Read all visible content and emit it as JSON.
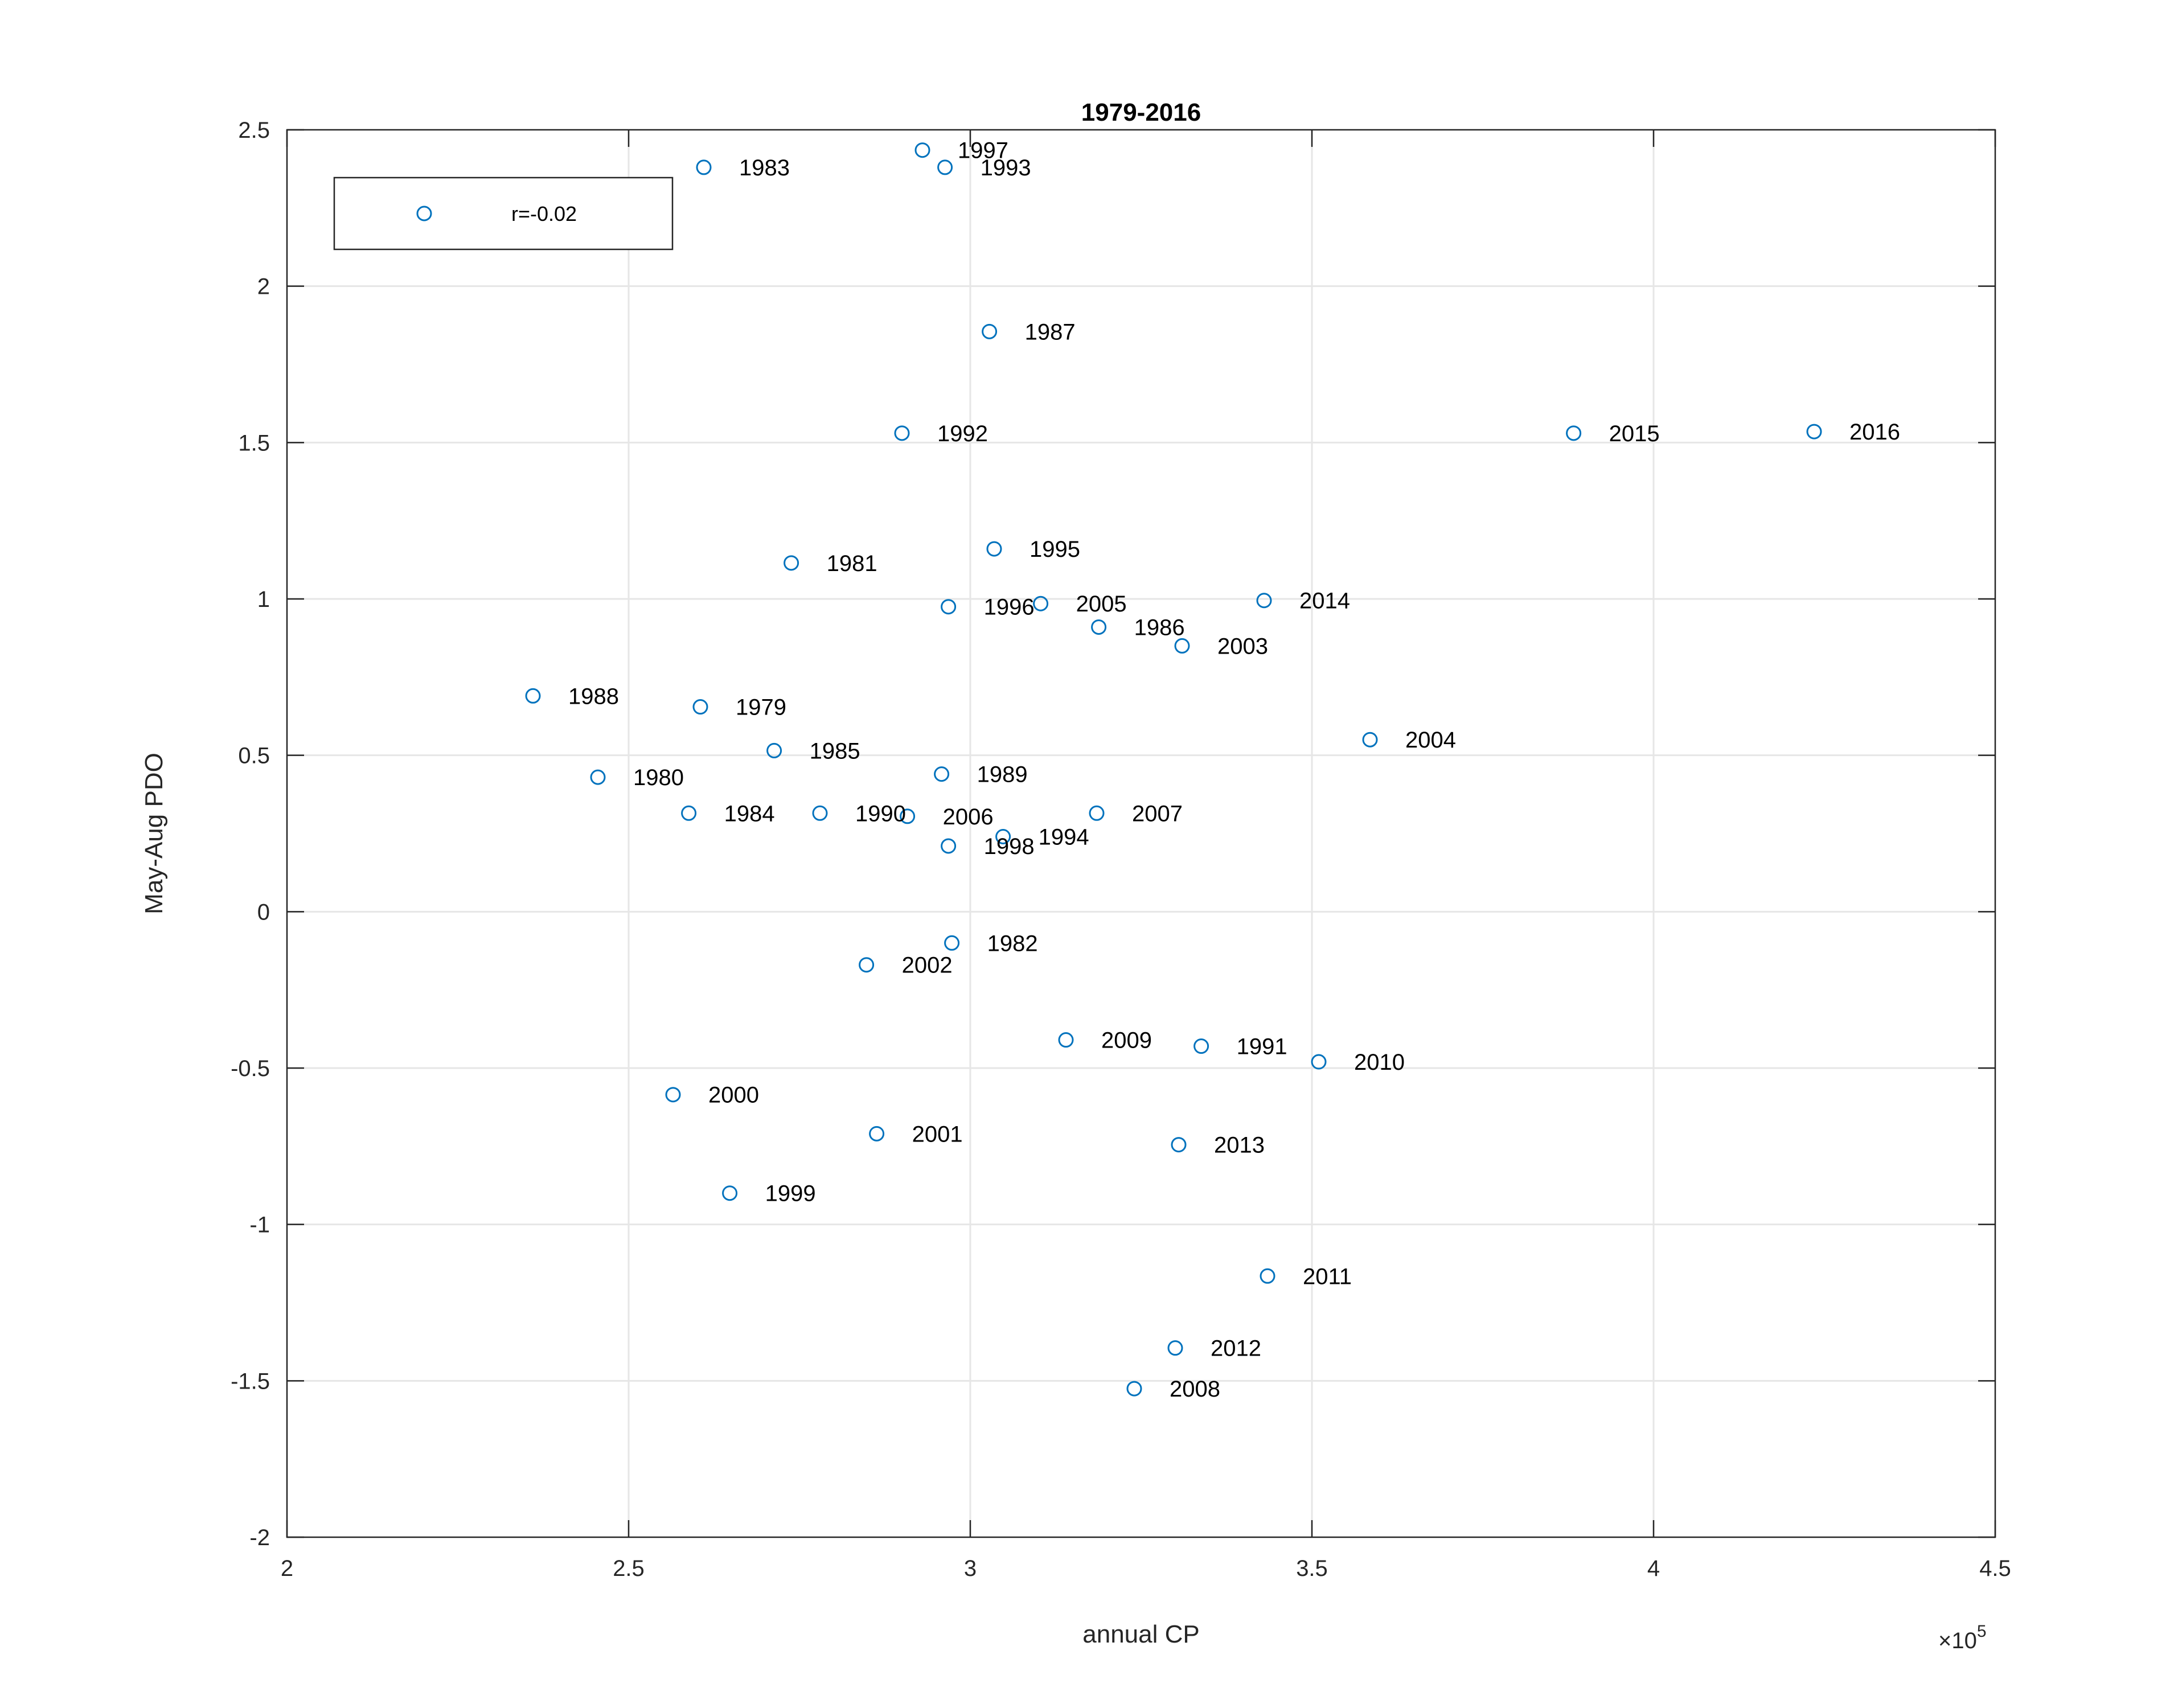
{
  "chart_data": {
    "type": "scatter",
    "title": "1979-2016",
    "xlabel": "annual CP",
    "ylabel": "May-Aug PDO",
    "x_exponent_label": "×10",
    "x_exponent_power": "5",
    "x_scale": 100000,
    "xlim": [
      2,
      4.5
    ],
    "ylim": [
      -2,
      2.5
    ],
    "xticks": [
      2,
      2.5,
      3,
      3.5,
      4,
      4.5
    ],
    "xtick_labels": [
      "2",
      "2.5",
      "3",
      "3.5",
      "4",
      "4.5"
    ],
    "yticks": [
      -2,
      -1.5,
      -1,
      -0.5,
      0,
      0.5,
      1,
      1.5,
      2,
      2.5
    ],
    "ytick_labels": [
      "-2",
      "-1.5",
      "-1",
      "-0.5",
      "0",
      "0.5",
      "1",
      "1.5",
      "2",
      "2.5"
    ],
    "grid": true,
    "legend": {
      "position": "top-left",
      "entries": [
        "r=-0.02"
      ]
    },
    "marker": "circle-open",
    "colors": {
      "marker": "#0072BD",
      "axis": "#262626",
      "grid": "#e6e6e6"
    },
    "series": [
      {
        "name": "r=-0.02",
        "points": [
          {
            "label": "1979",
            "x": 2.605,
            "y": 0.655
          },
          {
            "label": "1980",
            "x": 2.455,
            "y": 0.43
          },
          {
            "label": "1981",
            "x": 2.738,
            "y": 1.115
          },
          {
            "label": "1982",
            "x": 2.973,
            "y": -0.1
          },
          {
            "label": "1983",
            "x": 2.61,
            "y": 2.38
          },
          {
            "label": "1984",
            "x": 2.588,
            "y": 0.315
          },
          {
            "label": "1985",
            "x": 2.713,
            "y": 0.515
          },
          {
            "label": "1986",
            "x": 3.188,
            "y": 0.91
          },
          {
            "label": "1987",
            "x": 3.028,
            "y": 1.855
          },
          {
            "label": "1988",
            "x": 2.36,
            "y": 0.69
          },
          {
            "label": "1989",
            "x": 2.958,
            "y": 0.44
          },
          {
            "label": "1990",
            "x": 2.78,
            "y": 0.315
          },
          {
            "label": "1991",
            "x": 3.338,
            "y": -0.43
          },
          {
            "label": "1992",
            "x": 2.9,
            "y": 1.53
          },
          {
            "label": "1993",
            "x": 2.963,
            "y": 2.38
          },
          {
            "label": "1994",
            "x": 3.048,
            "y": 0.24
          },
          {
            "label": "1995",
            "x": 3.035,
            "y": 1.16
          },
          {
            "label": "1996",
            "x": 2.968,
            "y": 0.975
          },
          {
            "label": "1997",
            "x": 2.93,
            "y": 2.435
          },
          {
            "label": "1998",
            "x": 2.968,
            "y": 0.21
          },
          {
            "label": "1999",
            "x": 2.648,
            "y": -0.9
          },
          {
            "label": "2000",
            "x": 2.565,
            "y": -0.585
          },
          {
            "label": "2001",
            "x": 2.863,
            "y": -0.71
          },
          {
            "label": "2002",
            "x": 2.848,
            "y": -0.17
          },
          {
            "label": "2003",
            "x": 3.31,
            "y": 0.85
          },
          {
            "label": "2004",
            "x": 3.585,
            "y": 0.55
          },
          {
            "label": "2005",
            "x": 3.103,
            "y": 0.985
          },
          {
            "label": "2006",
            "x": 2.908,
            "y": 0.305
          },
          {
            "label": "2007",
            "x": 3.185,
            "y": 0.315
          },
          {
            "label": "2008",
            "x": 3.24,
            "y": -1.525
          },
          {
            "label": "2009",
            "x": 3.14,
            "y": -0.41
          },
          {
            "label": "2010",
            "x": 3.51,
            "y": -0.48
          },
          {
            "label": "2011",
            "x": 3.435,
            "y": -1.165
          },
          {
            "label": "2012",
            "x": 3.3,
            "y": -1.395
          },
          {
            "label": "2013",
            "x": 3.305,
            "y": -0.745
          },
          {
            "label": "2014",
            "x": 3.43,
            "y": 0.995
          },
          {
            "label": "2015",
            "x": 3.883,
            "y": 1.53
          },
          {
            "label": "2016",
            "x": 4.235,
            "y": 1.535
          }
        ]
      }
    ]
  }
}
